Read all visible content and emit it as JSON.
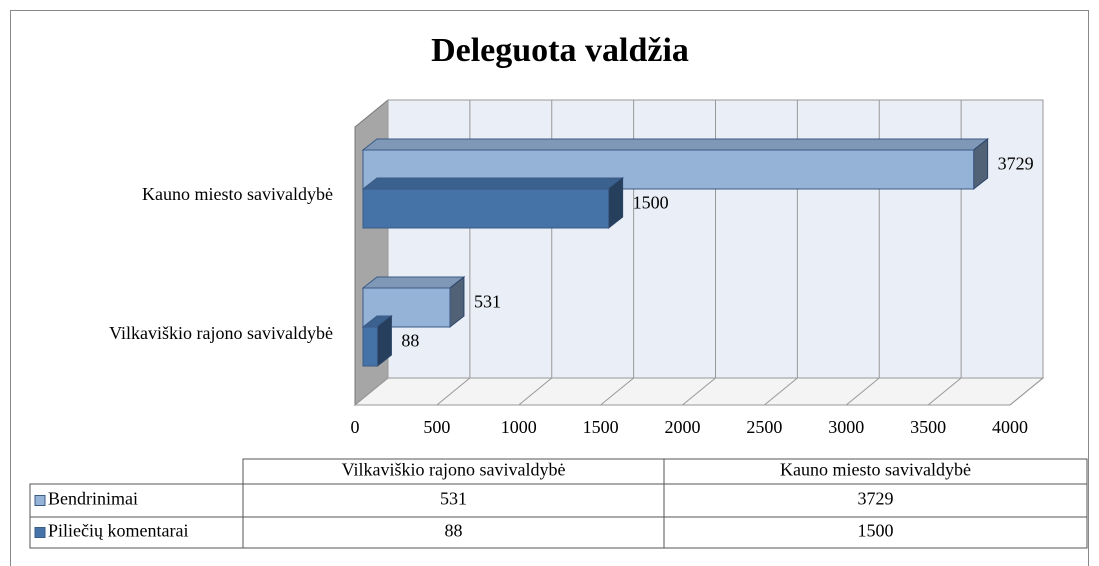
{
  "chart_data": {
    "type": "bar",
    "orientation": "horizontal",
    "title": "Deleguota valdžia",
    "categories": [
      "Vilkaviškio rajono savivaldybė",
      "Kauno miesto savivaldybė"
    ],
    "series": [
      {
        "name": "Bendrinimai",
        "color": "#95b3d7",
        "values": [
          531,
          3729
        ]
      },
      {
        "name": "Piliečių komentarai",
        "color": "#4572a7",
        "values": [
          88,
          1500
        ]
      }
    ],
    "xlim": [
      0,
      4000
    ],
    "xticks": [
      0,
      500,
      1000,
      1500,
      2000,
      2500,
      3000,
      3500,
      4000
    ],
    "grid": true
  }
}
